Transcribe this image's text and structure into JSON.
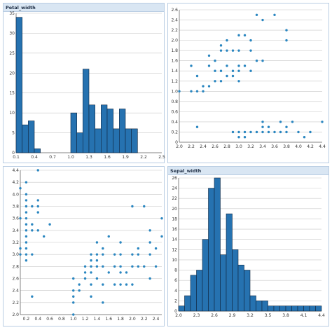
{
  "colors": {
    "bar": "#2672b0",
    "bar_stroke": "#10263f",
    "point": "#2a86c0",
    "grid": "#c8c8c8",
    "axis": "#666666"
  },
  "chart_data": [
    {
      "type": "bar",
      "title": "Petal_width",
      "xlim": [
        0.1,
        2.5
      ],
      "ylim": [
        0,
        35
      ],
      "xticks": [
        "0.1",
        "0.4",
        "0.7",
        "1.0",
        "1.3",
        "1.6",
        "1.9",
        "2.2",
        "2.5"
      ],
      "yticks": [
        "0",
        "5",
        "10",
        "15",
        "20",
        "25",
        "30",
        "35"
      ],
      "bin_width": 0.1,
      "bins": [
        {
          "x0": 0.1,
          "value": 34
        },
        {
          "x0": 0.2,
          "value": 7
        },
        {
          "x0": 0.3,
          "value": 8
        },
        {
          "x0": 0.4,
          "value": 1
        },
        {
          "x0": 0.5,
          "value": 0
        },
        {
          "x0": 0.6,
          "value": 0
        },
        {
          "x0": 0.7,
          "value": 0
        },
        {
          "x0": 0.8,
          "value": 0
        },
        {
          "x0": 0.9,
          "value": 0
        },
        {
          "x0": 1.0,
          "value": 10
        },
        {
          "x0": 1.1,
          "value": 5
        },
        {
          "x0": 1.2,
          "value": 21
        },
        {
          "x0": 1.3,
          "value": 12
        },
        {
          "x0": 1.4,
          "value": 6
        },
        {
          "x0": 1.5,
          "value": 12
        },
        {
          "x0": 1.6,
          "value": 11
        },
        {
          "x0": 1.7,
          "value": 6
        },
        {
          "x0": 1.8,
          "value": 11
        },
        {
          "x0": 1.9,
          "value": 6
        },
        {
          "x0": 2.0,
          "value": 6
        },
        {
          "x0": 2.1,
          "value": 0
        },
        {
          "x0": 2.2,
          "value": 0
        },
        {
          "x0": 2.3,
          "value": 0
        },
        {
          "x0": 2.4,
          "value": 0
        }
      ]
    },
    {
      "type": "scatter",
      "title": "",
      "xlim": [
        2.0,
        4.4
      ],
      "ylim": [
        0,
        2.6
      ],
      "xticks": [
        "2.0",
        "2.2",
        "2.4",
        "2.6",
        "2.8",
        "3.0",
        "3.2",
        "3.4",
        "3.6",
        "3.8",
        "4.0",
        "4.2",
        "4.4"
      ],
      "yticks": [
        "0",
        "0.2",
        "0.4",
        "0.6",
        "0.8",
        "1.0",
        "1.2",
        "1.4",
        "1.6",
        "1.8",
        "2.0",
        "2.2",
        "2.4",
        "2.6"
      ],
      "points": [
        [
          2.0,
          1.0
        ],
        [
          2.2,
          1.0
        ],
        [
          2.2,
          1.5
        ],
        [
          2.3,
          1.0
        ],
        [
          2.3,
          1.3
        ],
        [
          2.4,
          1.0
        ],
        [
          2.4,
          1.1
        ],
        [
          2.5,
          1.1
        ],
        [
          2.5,
          1.5
        ],
        [
          2.5,
          1.7
        ],
        [
          2.6,
          1.2
        ],
        [
          2.6,
          1.4
        ],
        [
          2.6,
          1.6
        ],
        [
          2.7,
          1.2
        ],
        [
          2.7,
          1.4
        ],
        [
          2.7,
          1.8
        ],
        [
          2.7,
          1.9
        ],
        [
          2.8,
          1.3
        ],
        [
          2.8,
          1.5
        ],
        [
          2.8,
          1.8
        ],
        [
          2.8,
          2.0
        ],
        [
          2.9,
          1.3
        ],
        [
          2.9,
          1.4
        ],
        [
          2.9,
          1.8
        ],
        [
          3.0,
          1.2
        ],
        [
          3.0,
          1.4
        ],
        [
          3.0,
          1.5
        ],
        [
          3.0,
          1.8
        ],
        [
          3.0,
          2.1
        ],
        [
          3.1,
          1.5
        ],
        [
          3.1,
          2.1
        ],
        [
          3.2,
          1.4
        ],
        [
          3.2,
          1.8
        ],
        [
          3.2,
          2.0
        ],
        [
          3.3,
          1.6
        ],
        [
          3.3,
          2.5
        ],
        [
          3.4,
          1.6
        ],
        [
          3.4,
          2.4
        ],
        [
          3.6,
          2.5
        ],
        [
          3.8,
          2.0
        ],
        [
          3.8,
          2.2
        ],
        [
          2.3,
          0.3
        ],
        [
          2.9,
          0.2
        ],
        [
          3.0,
          0.1
        ],
        [
          3.0,
          0.2
        ],
        [
          3.1,
          0.1
        ],
        [
          3.1,
          0.2
        ],
        [
          3.2,
          0.2
        ],
        [
          3.3,
          0.2
        ],
        [
          3.4,
          0.2
        ],
        [
          3.4,
          0.3
        ],
        [
          3.4,
          0.4
        ],
        [
          3.5,
          0.2
        ],
        [
          3.5,
          0.3
        ],
        [
          3.6,
          0.2
        ],
        [
          3.7,
          0.2
        ],
        [
          3.7,
          0.4
        ],
        [
          3.8,
          0.2
        ],
        [
          3.8,
          0.3
        ],
        [
          3.9,
          0.4
        ],
        [
          4.0,
          0.2
        ],
        [
          4.1,
          0.1
        ],
        [
          4.2,
          0.2
        ],
        [
          4.4,
          0.4
        ]
      ]
    },
    {
      "type": "scatter",
      "title": "",
      "xlim": [
        0.1,
        2.5
      ],
      "ylim": [
        2.0,
        4.4
      ],
      "xticks": [
        "0.2",
        "0.4",
        "0.6",
        "0.8",
        "1.0",
        "1.2",
        "1.4",
        "1.6",
        "1.8",
        "2.0",
        "2.2",
        "2.4"
      ],
      "yticks": [
        "2.0",
        "2.2",
        "2.4",
        "2.6",
        "2.8",
        "3.0",
        "3.2",
        "3.4",
        "3.6",
        "3.8",
        "4.0",
        "4.2",
        "4.4"
      ],
      "points": [
        [
          0.1,
          3.0
        ],
        [
          0.1,
          3.1
        ],
        [
          0.1,
          3.6
        ],
        [
          0.1,
          4.1
        ],
        [
          0.2,
          2.9
        ],
        [
          0.2,
          3.0
        ],
        [
          0.2,
          3.1
        ],
        [
          0.2,
          3.2
        ],
        [
          0.2,
          3.3
        ],
        [
          0.2,
          3.4
        ],
        [
          0.2,
          3.5
        ],
        [
          0.2,
          3.6
        ],
        [
          0.2,
          3.7
        ],
        [
          0.2,
          3.8
        ],
        [
          0.2,
          3.9
        ],
        [
          0.2,
          4.0
        ],
        [
          0.2,
          4.2
        ],
        [
          0.3,
          2.3
        ],
        [
          0.3,
          3.0
        ],
        [
          0.3,
          3.4
        ],
        [
          0.3,
          3.5
        ],
        [
          0.3,
          3.8
        ],
        [
          0.4,
          3.4
        ],
        [
          0.4,
          3.7
        ],
        [
          0.4,
          3.8
        ],
        [
          0.4,
          3.9
        ],
        [
          0.4,
          4.4
        ],
        [
          0.5,
          3.3
        ],
        [
          0.6,
          3.5
        ],
        [
          1.0,
          2.0
        ],
        [
          1.0,
          2.2
        ],
        [
          1.0,
          2.3
        ],
        [
          1.0,
          2.4
        ],
        [
          1.0,
          2.6
        ],
        [
          1.1,
          2.4
        ],
        [
          1.1,
          2.5
        ],
        [
          1.2,
          2.6
        ],
        [
          1.2,
          2.7
        ],
        [
          1.2,
          2.8
        ],
        [
          1.3,
          2.3
        ],
        [
          1.3,
          2.5
        ],
        [
          1.3,
          2.7
        ],
        [
          1.3,
          2.8
        ],
        [
          1.3,
          2.9
        ],
        [
          1.3,
          3.0
        ],
        [
          1.4,
          2.6
        ],
        [
          1.4,
          2.8
        ],
        [
          1.4,
          2.9
        ],
        [
          1.4,
          3.0
        ],
        [
          1.4,
          3.2
        ],
        [
          1.5,
          2.2
        ],
        [
          1.5,
          2.5
        ],
        [
          1.5,
          2.8
        ],
        [
          1.5,
          3.0
        ],
        [
          1.5,
          3.1
        ],
        [
          1.6,
          2.7
        ],
        [
          1.6,
          3.3
        ],
        [
          1.7,
          2.5
        ],
        [
          1.7,
          2.8
        ],
        [
          1.7,
          3.0
        ],
        [
          1.8,
          2.5
        ],
        [
          1.8,
          2.7
        ],
        [
          1.8,
          2.8
        ],
        [
          1.8,
          3.0
        ],
        [
          1.8,
          3.2
        ],
        [
          1.9,
          2.5
        ],
        [
          1.9,
          2.7
        ],
        [
          2.0,
          2.5
        ],
        [
          2.0,
          2.8
        ],
        [
          2.0,
          3.0
        ],
        [
          2.0,
          3.8
        ],
        [
          2.1,
          2.8
        ],
        [
          2.1,
          3.0
        ],
        [
          2.1,
          3.1
        ],
        [
          2.2,
          2.8
        ],
        [
          2.2,
          3.8
        ],
        [
          2.3,
          2.6
        ],
        [
          2.3,
          3.0
        ],
        [
          2.3,
          3.2
        ],
        [
          2.3,
          3.4
        ],
        [
          2.4,
          2.8
        ],
        [
          2.4,
          3.1
        ],
        [
          2.5,
          3.3
        ],
        [
          2.5,
          3.6
        ]
      ]
    },
    {
      "type": "bar",
      "title": "Sepal_width",
      "xlim": [
        2.0,
        4.4
      ],
      "ylim": [
        0,
        26
      ],
      "xticks": [
        "2.0",
        "2.3",
        "2.6",
        "2.9",
        "3.2",
        "3.5",
        "3.8",
        "4.1",
        "4.4"
      ],
      "yticks": [
        "0",
        "2",
        "4",
        "6",
        "8",
        "10",
        "12",
        "14",
        "16",
        "18",
        "20",
        "22",
        "24",
        "26"
      ],
      "bin_width": 0.1,
      "bins": [
        {
          "x0": 2.0,
          "value": 1
        },
        {
          "x0": 2.1,
          "value": 3
        },
        {
          "x0": 2.2,
          "value": 7
        },
        {
          "x0": 2.3,
          "value": 8
        },
        {
          "x0": 2.4,
          "value": 14
        },
        {
          "x0": 2.5,
          "value": 24
        },
        {
          "x0": 2.6,
          "value": 26
        },
        {
          "x0": 2.7,
          "value": 11
        },
        {
          "x0": 2.8,
          "value": 19
        },
        {
          "x0": 2.9,
          "value": 12
        },
        {
          "x0": 3.0,
          "value": 9
        },
        {
          "x0": 3.1,
          "value": 8
        },
        {
          "x0": 3.2,
          "value": 3
        },
        {
          "x0": 3.3,
          "value": 2
        },
        {
          "x0": 3.4,
          "value": 2
        },
        {
          "x0": 3.5,
          "value": 1
        },
        {
          "x0": 3.6,
          "value": 1
        },
        {
          "x0": 3.7,
          "value": 1
        },
        {
          "x0": 3.8,
          "value": 1
        },
        {
          "x0": 3.9,
          "value": 1
        },
        {
          "x0": 4.0,
          "value": 1
        },
        {
          "x0": 4.1,
          "value": 1
        },
        {
          "x0": 4.2,
          "value": 1
        },
        {
          "x0": 4.3,
          "value": 1
        }
      ]
    }
  ]
}
